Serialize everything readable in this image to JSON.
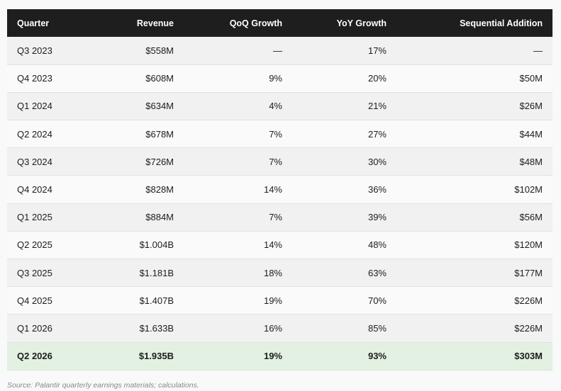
{
  "table": {
    "headers": [
      "Quarter",
      "Revenue",
      "QoQ Growth",
      "YoY Growth",
      "Sequential Addition"
    ],
    "rows": [
      [
        "Q3 2023",
        "$558M",
        "—",
        "17%",
        "—"
      ],
      [
        "Q4 2023",
        "$608M",
        "9%",
        "20%",
        "$50M"
      ],
      [
        "Q1 2024",
        "$634M",
        "4%",
        "21%",
        "$26M"
      ],
      [
        "Q2 2024",
        "$678M",
        "7%",
        "27%",
        "$44M"
      ],
      [
        "Q3 2024",
        "$726M",
        "7%",
        "30%",
        "$48M"
      ],
      [
        "Q4 2024",
        "$828M",
        "14%",
        "36%",
        "$102M"
      ],
      [
        "Q1 2025",
        "$884M",
        "7%",
        "39%",
        "$56M"
      ],
      [
        "Q2 2025",
        "$1.004B",
        "14%",
        "48%",
        "$120M"
      ],
      [
        "Q3 2025",
        "$1.181B",
        "18%",
        "63%",
        "$177M"
      ],
      [
        "Q4 2025",
        "$1.407B",
        "19%",
        "70%",
        "$226M"
      ],
      [
        "Q1 2026",
        "$1.633B",
        "16%",
        "85%",
        "$226M"
      ],
      [
        "Q2 2026",
        "$1.935B",
        "19%",
        "93%",
        "$303M"
      ]
    ],
    "highlight_color": "#e2f1e2",
    "header_color": "#1e1e1e"
  },
  "source_note": "Source: Palantir quarterly earnings materials; calculations."
}
